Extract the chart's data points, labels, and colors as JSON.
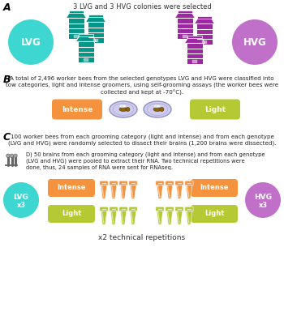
{
  "title_A": "3 LVG and 3 HVG colonies were selected",
  "label_A": "A",
  "label_B": "B",
  "label_C": "C",
  "lvg_color": "#3DD6D0",
  "hvg_color": "#C070C8",
  "hive_lvg_color": "#009688",
  "hive_hvg_color": "#9C27A0",
  "intense_color": "#F5923E",
  "light_color": "#B5C935",
  "petri_color": "#D0CCEE",
  "tube_orange_color": "#F5923E",
  "tube_green_color": "#B5C935",
  "text_B": "A total of 2,496 worker bees from the selected genotypes LVG and HVG were classified into\ntow categories, light and intense groomers, using self-grooming assays (the worker bees were\ncollected and kept at -70°C).",
  "text_C1": "100 worker bees from each grooming category (light and intense) and from each genotype\n(LVG and HVG) were randomly selected to dissect their brains (1,200 brains were dissected).",
  "text_C2": "D) 50 brains from each grooming category (light and intense) and from each genotype\n(LVG and HVG) were pooled to extract their RNA. Two technical repetitions were\ndone, thus, 24 samples of RNA were sent for RNAseq.",
  "x2_text": "x2 technical repetitions",
  "bg_color": "#FFFFFF"
}
